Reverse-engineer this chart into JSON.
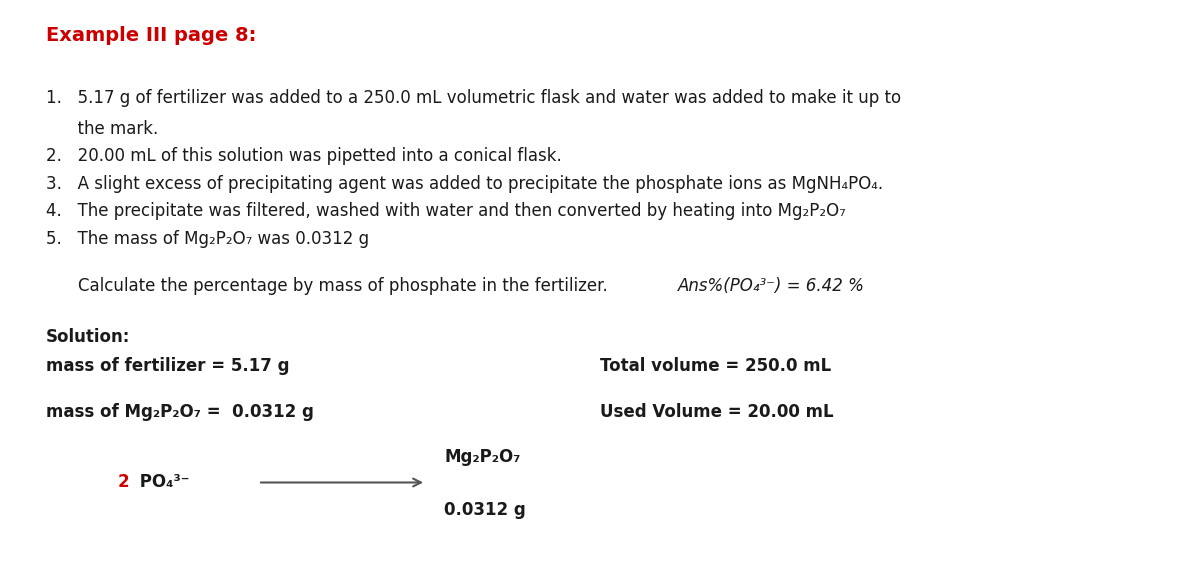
{
  "title": "Example III page 8:",
  "title_color": "#cc0000",
  "title_fontsize": 14,
  "background_color": "#ffffff",
  "figsize": [
    12.0,
    5.71
  ],
  "dpi": 100,
  "item1_line1": "1.   5.17 g of fertilizer was added to a 250.0 mL volumetric flask and water was added to make it up to",
  "item1_line2": "      the mark.",
  "item2": "2.   20.00 mL of this solution was pipetted into a conical flask.",
  "item3": "3.   A slight excess of precipitating agent was added to precipitate the phosphate ions as MgNH₄PO₄.",
  "item4": "4.   The precipitate was filtered, washed with water and then converted by heating into Mg₂P₂O₇",
  "item5": "5.   The mass of Mg₂P₂O₇ was 0.0312 g",
  "question_plain": "Calculate the percentage by mass of phosphate in the fertilizer. ",
  "question_italic": "Ans%(PO₄³⁻) = 6.42 %",
  "sol_label": "Solution:",
  "sol_line1_left": "mass of fertilizer = 5.17 g",
  "sol_line1_right": "Total volume = 250.0 mL",
  "sol_line2_left": "mass of Mg₂P₂O₇ =  0.0312 g",
  "sol_line2_right": "Used Volume = 20.00 mL",
  "arrow_left_label_red": "2",
  "arrow_left_label_black": " PO₄³⁻",
  "arrow_right_label_line1": "Mg₂P₂O₇",
  "arrow_right_label_line2": "0.0312 g",
  "arrow_color": "#555555",
  "arrow_label_color": "#cc0000",
  "text_color": "#1a1a1a",
  "item_fontsize": 12,
  "sol_fontsize": 12
}
